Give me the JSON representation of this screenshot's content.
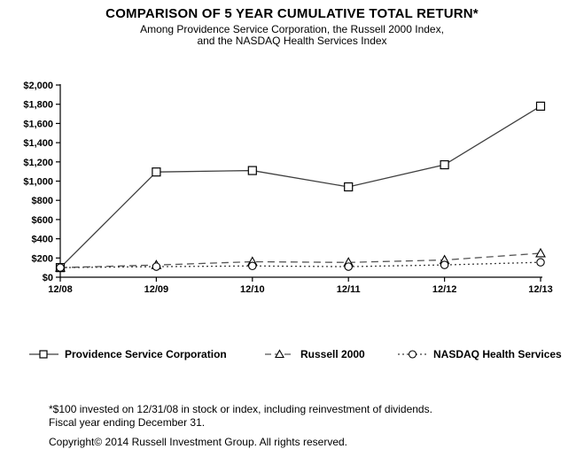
{
  "chart_data": {
    "type": "line",
    "title": "COMPARISON OF 5 YEAR CUMULATIVE TOTAL RETURN*",
    "subtitle_line1": "Among Providence Service Corporation, the Russell 2000 Index,",
    "subtitle_line2": "and the NASDAQ Health Services Index",
    "x_labels": [
      "12/08",
      "12/09",
      "12/10",
      "12/11",
      "12/12",
      "12/13"
    ],
    "ylim": [
      0,
      2000
    ],
    "ytick_interval": 200,
    "ytick_labels": [
      "$0",
      "$200",
      "$400",
      "$600",
      "$800",
      "$1,000",
      "$1,200",
      "$1,400",
      "$1,600",
      "$1,800",
      "$2,000"
    ],
    "grid": false,
    "legend_position": "bottom",
    "series": [
      {
        "name": "Providence Service Corporation",
        "marker": "square",
        "line_style": "solid",
        "values": [
          100,
          1095,
          1110,
          940,
          1170,
          1780
        ]
      },
      {
        "name": "Russell 2000",
        "marker": "triangle",
        "line_style": "dashed",
        "values": [
          100,
          127,
          161,
          154,
          179,
          249
        ]
      },
      {
        "name": "NASDAQ Health Services",
        "marker": "circle",
        "line_style": "dotted",
        "values": [
          100,
          110,
          117,
          110,
          128,
          155
        ]
      }
    ]
  },
  "footnotes": {
    "line1": "*$100 invested on 12/31/08 in stock or index, including reinvestment of dividends.",
    "line2": "Fiscal year ending December 31.",
    "copyright": "Copyright© 2014 Russell Investment Group. All rights reserved."
  },
  "colors": {
    "text": "#000000",
    "axis": "#000000",
    "line_solid": "#3f3f3f",
    "line_dashed": "#555555",
    "line_dotted": "#3f3f3f",
    "marker_fill": "#ffffff"
  }
}
